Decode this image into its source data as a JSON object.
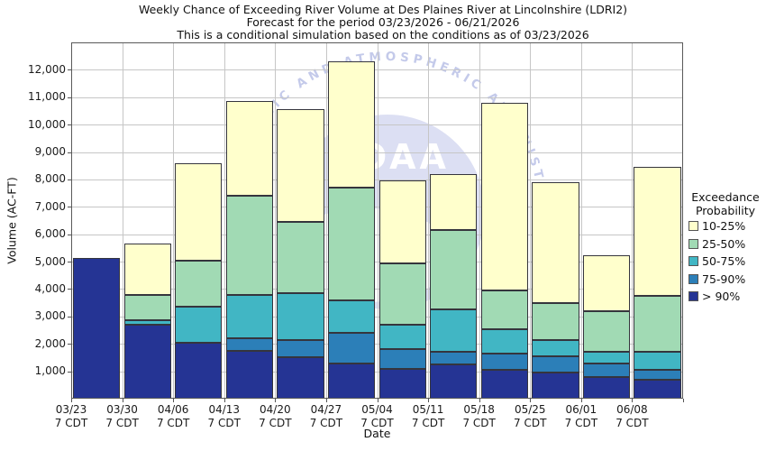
{
  "title": {
    "line1": "Weekly Chance of Exceeding River Volume at Des Plaines River at Lincolnshire (LDRI2)",
    "line2": "Forecast for the period 03/23/2026 - 06/21/2026",
    "line3": "This is a conditional simulation based on the conditions as of 03/23/2026"
  },
  "y_axis": {
    "label": "Volume (AC-FT)"
  },
  "x_axis": {
    "label": "Date",
    "category_sub_label": "7 CDT"
  },
  "legend": {
    "title_line1": "Exceedance",
    "title_line2": "Probability",
    "items": [
      {
        "label": "10-25%",
        "color": "#ffffcc"
      },
      {
        "label": "25-50%",
        "color": "#a1dab4"
      },
      {
        "label": "50-75%",
        "color": "#41b6c4"
      },
      {
        "label": "75-90%",
        "color": "#2c7fb8"
      },
      {
        "label": "> 90%",
        "color": "#253494"
      }
    ]
  },
  "watermark": {
    "arc_text": "NATIONAL OCEANIC AND ATMOSPHERIC ADMINISTRATION",
    "disc_text": "NOAA",
    "disc_color": "#d7daf2",
    "text_color": "#b3bbe4"
  },
  "chart_data": {
    "type": "bar",
    "stacked": true,
    "title": "Weekly Chance of Exceeding River Volume at Des Plaines River at Lincolnshire (LDRI2)",
    "xlabel": "Date",
    "ylabel": "Volume (AC-FT)",
    "ylim": [
      0,
      13000
    ],
    "y_tick_step": 1000,
    "grid": true,
    "legend_position": "right",
    "categories": [
      "03/23",
      "03/30",
      "04/06",
      "04/13",
      "04/20",
      "04/27",
      "05/04",
      "05/11",
      "05/18",
      "05/25",
      "06/01",
      "06/08"
    ],
    "category_sub_label": "7 CDT",
    "series": [
      {
        "name": "> 90%",
        "color": "#253494",
        "values": [
          5150,
          2700,
          2050,
          1750,
          1500,
          1300,
          1100,
          1250,
          1050,
          950,
          800,
          700
        ]
      },
      {
        "name": "75-90%",
        "color": "#2c7fb8",
        "values": [
          0,
          0,
          0,
          450,
          650,
          1100,
          700,
          450,
          600,
          600,
          500,
          350
        ]
      },
      {
        "name": "50-75%",
        "color": "#41b6c4",
        "values": [
          0,
          150,
          1300,
          1600,
          1700,
          1200,
          900,
          1550,
          900,
          600,
          400,
          650
        ]
      },
      {
        "name": "25-50%",
        "color": "#a1dab4",
        "values": [
          0,
          950,
          1700,
          3600,
          2600,
          4100,
          2250,
          2900,
          1400,
          1350,
          1500,
          2050
        ]
      },
      {
        "name": "10-25%",
        "color": "#ffffcc",
        "values": [
          0,
          1850,
          3550,
          3450,
          4100,
          4600,
          3000,
          2050,
          6850,
          4400,
          2050,
          4700
        ]
      }
    ],
    "bar_totals": [
      5150,
      5650,
      8600,
      10850,
      10550,
      12300,
      7950,
      8200,
      10800,
      7900,
      5250,
      8450
    ]
  }
}
